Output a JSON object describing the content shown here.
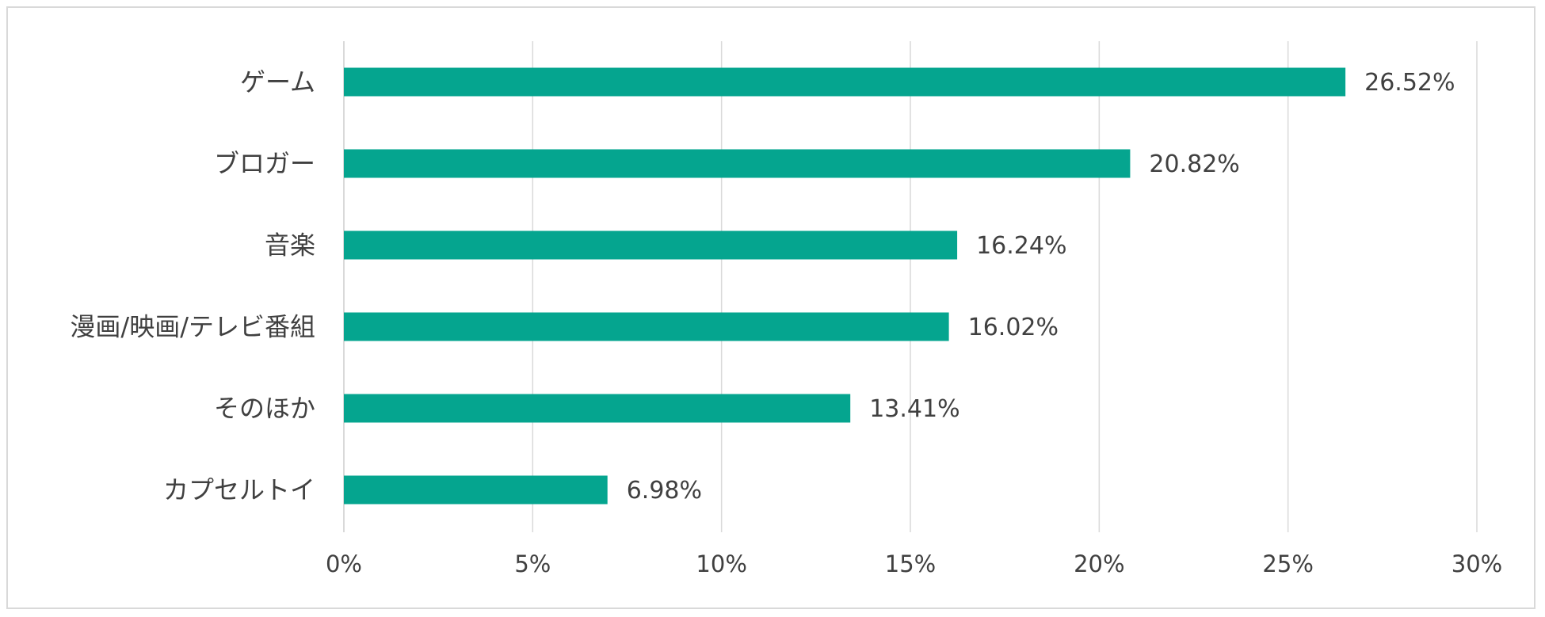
{
  "chart_data": {
    "type": "bar",
    "orientation": "horizontal",
    "categories": [
      "ゲーム",
      "ブロガー",
      "音楽",
      "漫画/映画/テレビ番組",
      "そのほか",
      "カプセルトイ"
    ],
    "values": [
      26.52,
      20.82,
      16.24,
      16.02,
      13.41,
      6.98
    ],
    "value_labels": [
      "26.52%",
      "20.82%",
      "16.24%",
      "16.02%",
      "13.41%",
      "6.98%"
    ],
    "x_ticks": [
      0,
      5,
      10,
      15,
      20,
      25,
      30
    ],
    "x_tick_labels": [
      "0%",
      "5%",
      "10%",
      "15%",
      "20%",
      "25%",
      "30%"
    ],
    "xlim": [
      0,
      30
    ],
    "grid": "vertical",
    "legend": "none",
    "bar_color": "#05a58f",
    "grid_color": "#d9d9d9"
  }
}
